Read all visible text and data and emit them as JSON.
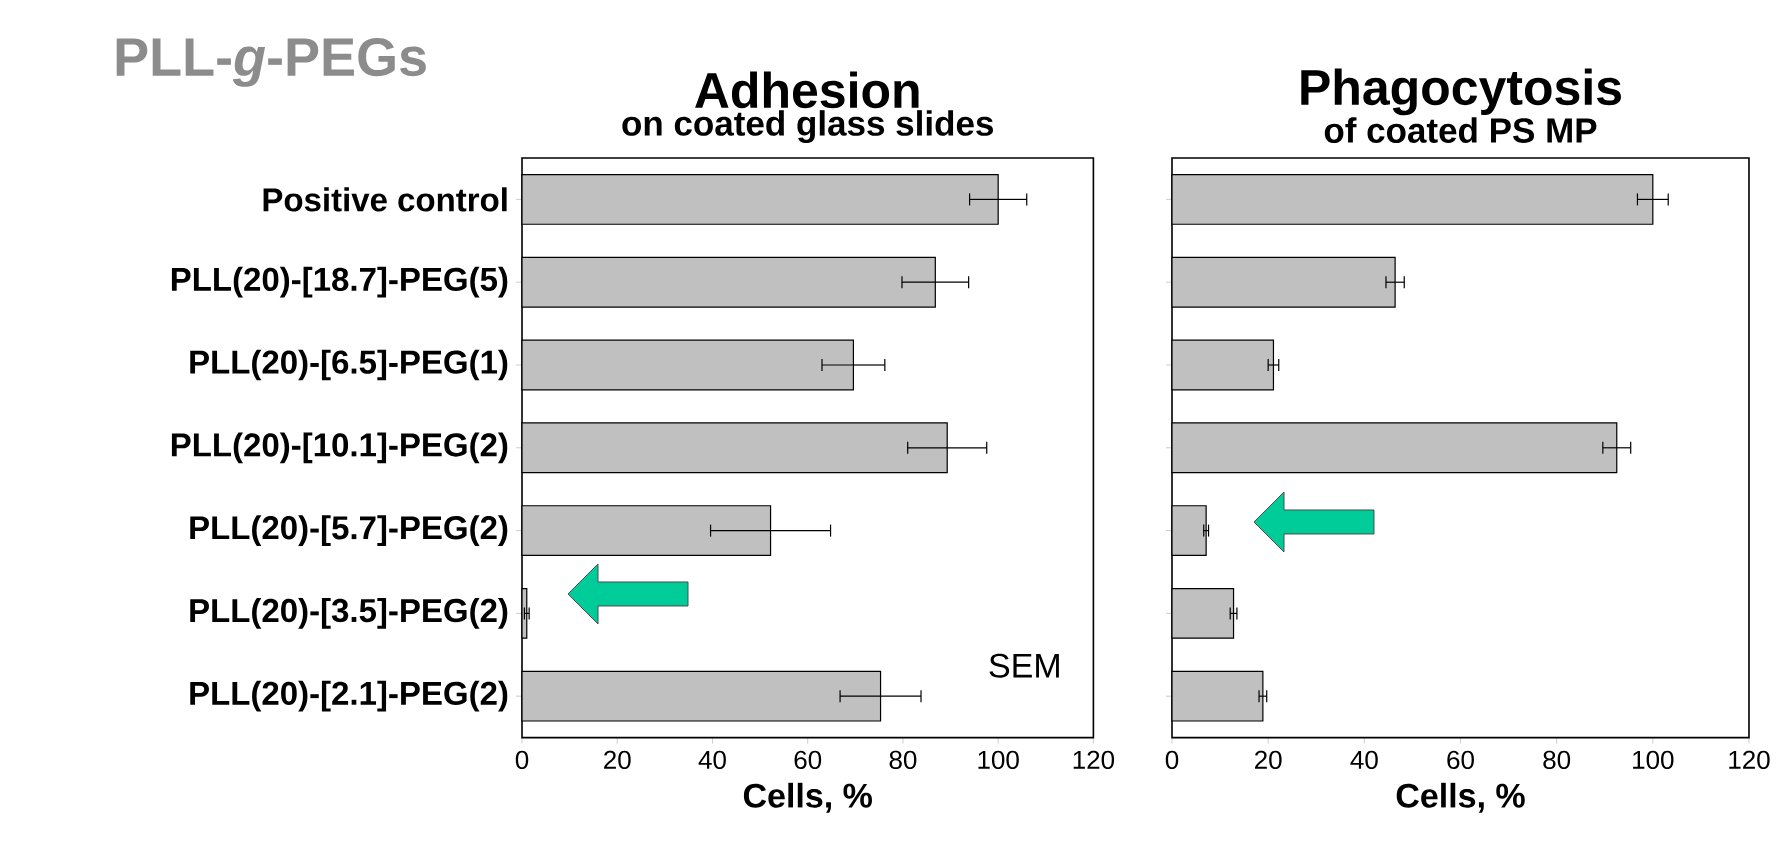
{
  "chart_data": [
    {
      "type": "bar",
      "orientation": "horizontal",
      "title": "Adhesion",
      "subtitle": "on coated glass slides",
      "xlabel": "Cells, %",
      "categories": [
        "Positive control",
        "PLL(20)-[18.7]-PEG(5)",
        "PLL(20)-[6.5]-PEG(1)",
        "PLL(20)-[10.1]-PEG(2)",
        "PLL(20)-[5.7]-PEG(2)",
        "PLL(20)-[3.5]-PEG(2)",
        "PLL(20)-[2.1]-PEG(2)"
      ],
      "values": [
        100,
        86.8,
        69.6,
        89.3,
        52.2,
        1,
        75.3
      ],
      "errors": [
        6,
        7,
        6.6,
        8.3,
        12.6,
        0.5,
        8.5
      ],
      "color": "#c0c0c0",
      "xlim": [
        0,
        120
      ],
      "xticks": [
        0,
        20,
        40,
        60,
        80,
        100,
        120
      ],
      "annotations": [
        "PLL-*g*-PEGs",
        "SEM"
      ]
    },
    {
      "type": "bar",
      "orientation": "horizontal",
      "title": "Phagocytosis",
      "subtitle": "of coated PS MP",
      "xlabel": "Cells, %",
      "categories": [
        null,
        null,
        null,
        null,
        null,
        null,
        null
      ],
      "values": [
        100,
        46.4,
        21.1,
        92.5,
        7.1,
        12.8,
        18.9
      ],
      "errors": [
        3.2,
        1.9,
        1.1,
        2.9,
        0.5,
        0.7,
        0.8
      ],
      "color": "#c0c0c0",
      "xlim": [
        0,
        120
      ],
      "xticks": [
        0,
        20,
        40,
        60,
        80,
        100,
        120
      ],
      "tick_labels": "x"
    }
  ]
}
